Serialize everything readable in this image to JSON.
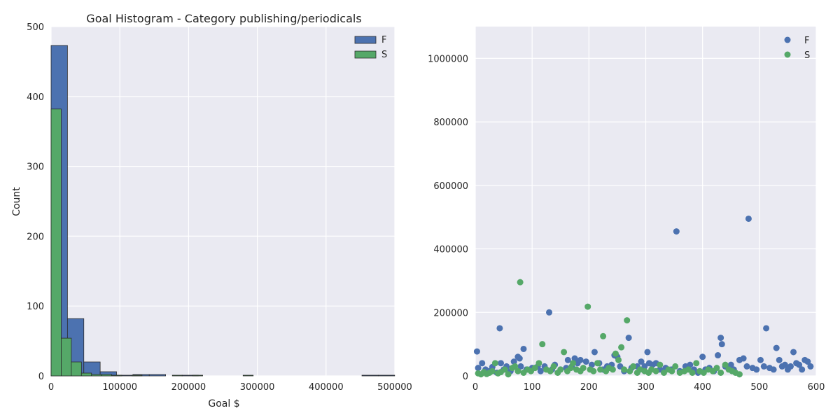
{
  "chart_data": [
    {
      "type": "bar",
      "title": "Goal Histogram - Category publishing/periodicals",
      "xlabel": "Goal $",
      "ylabel": "Count",
      "xlim": [
        0,
        500000
      ],
      "ylim": [
        0,
        500
      ],
      "x_ticks": [
        "0",
        "100000",
        "200000",
        "300000",
        "400000",
        "500000"
      ],
      "y_ticks": [
        "0",
        "100",
        "200",
        "300",
        "400",
        "500"
      ],
      "grid": true,
      "legend": "top-right",
      "series": [
        {
          "name": "F",
          "color": "#4c72b0",
          "bins": [
            {
              "x0": 0,
              "x1": 23800,
              "count": 473
            },
            {
              "x0": 23800,
              "x1": 47600,
              "count": 82
            },
            {
              "x0": 47600,
              "x1": 71400,
              "count": 20
            },
            {
              "x0": 71400,
              "x1": 95200,
              "count": 6
            },
            {
              "x0": 95200,
              "x1": 119000,
              "count": 1
            },
            {
              "x0": 119000,
              "x1": 142800,
              "count": 2
            },
            {
              "x0": 142800,
              "x1": 166600,
              "count": 2
            },
            {
              "x0": 166600,
              "x1": 190400,
              "count": 0
            },
            {
              "x0": 190400,
              "x1": 214200,
              "count": 1
            },
            {
              "x0": 452200,
              "x1": 476000,
              "count": 1
            },
            {
              "x0": 476000,
              "x1": 499800,
              "count": 1
            }
          ]
        },
        {
          "name": "S",
          "color": "#55a868",
          "bins": [
            {
              "x0": 0,
              "x1": 14700,
              "count": 382
            },
            {
              "x0": 14700,
              "x1": 29400,
              "count": 54
            },
            {
              "x0": 29400,
              "x1": 44100,
              "count": 20
            },
            {
              "x0": 44100,
              "x1": 58800,
              "count": 4
            },
            {
              "x0": 58800,
              "x1": 73500,
              "count": 2
            },
            {
              "x0": 73500,
              "x1": 88200,
              "count": 2
            },
            {
              "x0": 88200,
              "x1": 102900,
              "count": 1
            },
            {
              "x0": 117600,
              "x1": 132300,
              "count": 1
            },
            {
              "x0": 176400,
              "x1": 191100,
              "count": 1
            },
            {
              "x0": 205800,
              "x1": 220500,
              "count": 1
            },
            {
              "x0": 279300,
              "x1": 294000,
              "count": 1
            }
          ]
        }
      ]
    },
    {
      "type": "scatter",
      "title": "",
      "xlabel": "",
      "ylabel": "",
      "xlim": [
        0,
        600
      ],
      "ylim": [
        0,
        1100000
      ],
      "x_ticks": [
        "0",
        "100",
        "200",
        "300",
        "400",
        "500",
        "600"
      ],
      "y_ticks": [
        "0",
        "200000",
        "400000",
        "600000",
        "800000",
        "1000000"
      ],
      "grid": true,
      "legend": "top-right",
      "series": [
        {
          "name": "F",
          "color": "#4c72b0",
          "points": [
            [
              3,
              77000
            ],
            [
              5,
              25000
            ],
            [
              12,
              40000
            ],
            [
              18,
              20000
            ],
            [
              25,
              15000
            ],
            [
              30,
              28000
            ],
            [
              38,
              10000
            ],
            [
              43,
              150000
            ],
            [
              45,
              40000
            ],
            [
              50,
              20000
            ],
            [
              55,
              30000
            ],
            [
              62,
              15000
            ],
            [
              68,
              45000
            ],
            [
              75,
              60000
            ],
            [
              78,
              55000
            ],
            [
              80,
              30000
            ],
            [
              85,
              85000
            ],
            [
              90,
              20000
            ],
            [
              100,
              25000
            ],
            [
              110,
              30000
            ],
            [
              115,
              15000
            ],
            [
              122,
              30000
            ],
            [
              130,
              200000
            ],
            [
              135,
              20000
            ],
            [
              140,
              35000
            ],
            [
              150,
              20000
            ],
            [
              160,
              25000
            ],
            [
              163,
              50000
            ],
            [
              170,
              30000
            ],
            [
              175,
              55000
            ],
            [
              180,
              40000
            ],
            [
              185,
              50000
            ],
            [
              195,
              45000
            ],
            [
              205,
              35000
            ],
            [
              210,
              75000
            ],
            [
              218,
              40000
            ],
            [
              225,
              20000
            ],
            [
              232,
              30000
            ],
            [
              240,
              35000
            ],
            [
              245,
              65000
            ],
            [
              250,
              60000
            ],
            [
              255,
              30000
            ],
            [
              262,
              15000
            ],
            [
              270,
              120000
            ],
            [
              275,
              25000
            ],
            [
              285,
              30000
            ],
            [
              292,
              45000
            ],
            [
              298,
              30000
            ],
            [
              303,
              75000
            ],
            [
              306,
              40000
            ],
            [
              312,
              35000
            ],
            [
              318,
              40000
            ],
            [
              325,
              20000
            ],
            [
              335,
              25000
            ],
            [
              345,
              20000
            ],
            [
              354,
              455000
            ],
            [
              360,
              15000
            ],
            [
              370,
              30000
            ],
            [
              378,
              35000
            ],
            [
              385,
              20000
            ],
            [
              392,
              10000
            ],
            [
              400,
              60000
            ],
            [
              405,
              20000
            ],
            [
              412,
              25000
            ],
            [
              420,
              15000
            ],
            [
              427,
              65000
            ],
            [
              432,
              120000
            ],
            [
              434,
              100000
            ],
            [
              440,
              30000
            ],
            [
              445,
              25000
            ],
            [
              450,
              35000
            ],
            [
              455,
              20000
            ],
            [
              465,
              50000
            ],
            [
              472,
              55000
            ],
            [
              478,
              30000
            ],
            [
              481,
              495000
            ],
            [
              488,
              25000
            ],
            [
              495,
              20000
            ],
            [
              502,
              50000
            ],
            [
              508,
              30000
            ],
            [
              512,
              150000
            ],
            [
              518,
              25000
            ],
            [
              525,
              20000
            ],
            [
              530,
              88000
            ],
            [
              535,
              50000
            ],
            [
              540,
              30000
            ],
            [
              545,
              35000
            ],
            [
              550,
              20000
            ],
            [
              555,
              30000
            ],
            [
              560,
              75000
            ],
            [
              565,
              40000
            ],
            [
              570,
              35000
            ],
            [
              575,
              20000
            ],
            [
              580,
              50000
            ],
            [
              585,
              45000
            ],
            [
              590,
              30000
            ]
          ]
        },
        {
          "name": "S",
          "color": "#55a868",
          "points": [
            [
              5,
              8000
            ],
            [
              10,
              5000
            ],
            [
              15,
              12000
            ],
            [
              20,
              6000
            ],
            [
              25,
              10000
            ],
            [
              30,
              15000
            ],
            [
              35,
              40000
            ],
            [
              40,
              8000
            ],
            [
              45,
              12000
            ],
            [
              52,
              20000
            ],
            [
              58,
              5000
            ],
            [
              65,
              25000
            ],
            [
              70,
              30000
            ],
            [
              75,
              15000
            ],
            [
              79,
              295000
            ],
            [
              85,
              10000
            ],
            [
              92,
              20000
            ],
            [
              98,
              15000
            ],
            [
              105,
              25000
            ],
            [
              112,
              40000
            ],
            [
              118,
              100000
            ],
            [
              125,
              20000
            ],
            [
              132,
              15000
            ],
            [
              138,
              30000
            ],
            [
              145,
              10000
            ],
            [
              150,
              20000
            ],
            [
              156,
              75000
            ],
            [
              162,
              15000
            ],
            [
              168,
              25000
            ],
            [
              172,
              40000
            ],
            [
              178,
              20000
            ],
            [
              185,
              15000
            ],
            [
              190,
              25000
            ],
            [
              198,
              218000
            ],
            [
              202,
              20000
            ],
            [
              208,
              15000
            ],
            [
              215,
              40000
            ],
            [
              220,
              20000
            ],
            [
              225,
              125000
            ],
            [
              230,
              15000
            ],
            [
              235,
              25000
            ],
            [
              242,
              20000
            ],
            [
              247,
              70000
            ],
            [
              252,
              50000
            ],
            [
              257,
              90000
            ],
            [
              262,
              20000
            ],
            [
              267,
              175000
            ],
            [
              272,
              15000
            ],
            [
              278,
              30000
            ],
            [
              285,
              10000
            ],
            [
              290,
              20000
            ],
            [
              298,
              15000
            ],
            [
              305,
              10000
            ],
            [
              310,
              20000
            ],
            [
              318,
              15000
            ],
            [
              325,
              35000
            ],
            [
              332,
              10000
            ],
            [
              340,
              20000
            ],
            [
              346,
              15000
            ],
            [
              352,
              30000
            ],
            [
              360,
              10000
            ],
            [
              368,
              15000
            ],
            [
              375,
              20000
            ],
            [
              382,
              10000
            ],
            [
              389,
              40000
            ],
            [
              395,
              15000
            ],
            [
              402,
              10000
            ],
            [
              410,
              20000
            ],
            [
              418,
              15000
            ],
            [
              425,
              25000
            ],
            [
              432,
              10000
            ],
            [
              440,
              35000
            ],
            [
              446,
              20000
            ],
            [
              452,
              15000
            ],
            [
              458,
              10000
            ],
            [
              465,
              5000
            ]
          ]
        }
      ]
    }
  ]
}
